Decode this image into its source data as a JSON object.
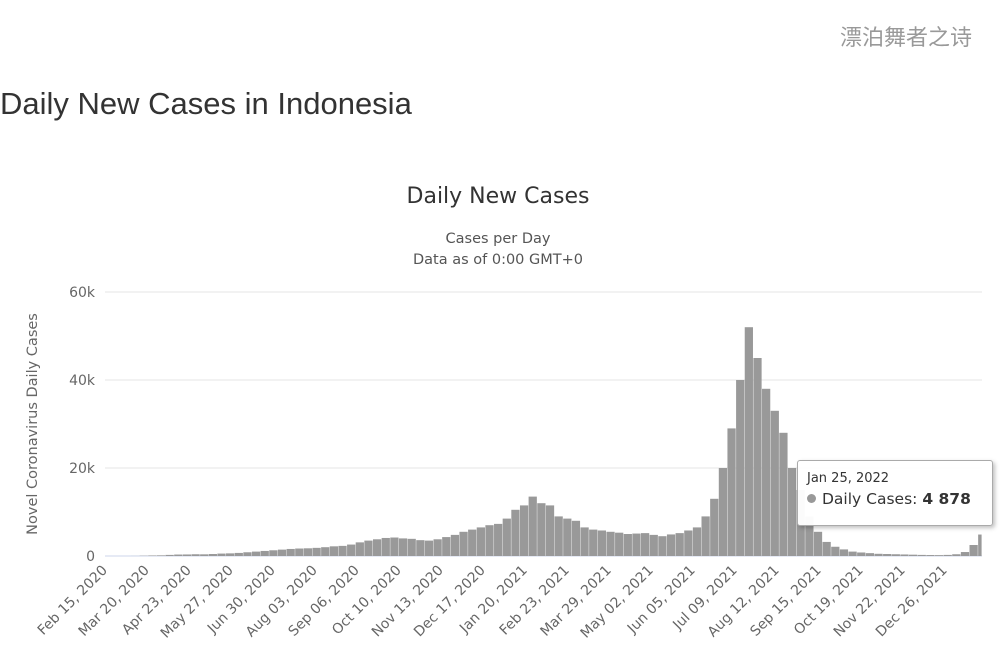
{
  "page": {
    "title": "Daily New Cases in Indonesia"
  },
  "watermark": "漂泊舞者之诗",
  "tooltip": {
    "date": "Jan 25, 2022",
    "series": "Daily Cases",
    "value": "4 878"
  },
  "colors": {
    "bar": "#999999",
    "grid": "#e6e6e6",
    "text": "#666666"
  },
  "chart_data": {
    "type": "bar",
    "title": "Daily New Cases",
    "subtitle": [
      "Cases per Day",
      "Data as of 0:00 GMT+0"
    ],
    "xlabel": "",
    "ylabel": "Novel Coronavirus Daily Cases",
    "ylim": [
      0,
      60000
    ],
    "yticks": [
      {
        "value": 0,
        "label": "0"
      },
      {
        "value": 20000,
        "label": "20k"
      },
      {
        "value": 40000,
        "label": "40k"
      },
      {
        "value": 60000,
        "label": "60k"
      }
    ],
    "x_start": "Feb 15, 2020",
    "x_end": "Jan 25, 2022",
    "x_step_days": 7,
    "xtick_interval_days": 34,
    "xticks": [
      "Feb 15, 2020",
      "Mar 20, 2020",
      "Apr 23, 2020",
      "May 27, 2020",
      "Jun 30, 2020",
      "Aug 03, 2020",
      "Sep 06, 2020",
      "Oct 10, 2020",
      "Nov 13, 2020",
      "Dec 17, 2020",
      "Jan 20, 2021",
      "Feb 23, 2021",
      "Mar 29, 2021",
      "May 02, 2021",
      "Jun 05, 2021",
      "Jul 09, 2021",
      "Aug 12, 2021",
      "Sep 15, 2021",
      "Oct 19, 2021",
      "Nov 22, 2021",
      "Dec 26, 2021"
    ],
    "grid": true,
    "legend": "none",
    "series": [
      {
        "name": "Daily Cases",
        "values": [
          0,
          0,
          0,
          10,
          60,
          120,
          150,
          250,
          330,
          350,
          400,
          380,
          450,
          550,
          600,
          700,
          850,
          1000,
          1150,
          1300,
          1450,
          1600,
          1700,
          1750,
          1850,
          2000,
          2200,
          2300,
          2600,
          3100,
          3500,
          3800,
          4100,
          4200,
          4000,
          3900,
          3600,
          3500,
          3800,
          4300,
          4800,
          5500,
          6000,
          6500,
          7000,
          7300,
          8500,
          10500,
          11500,
          13500,
          12000,
          11500,
          9000,
          8500,
          8000,
          6500,
          6000,
          5800,
          5500,
          5300,
          5000,
          5100,
          5200,
          4800,
          4500,
          4900,
          5200,
          5800,
          6500,
          9000,
          13000,
          20000,
          29000,
          40000,
          52000,
          45000,
          38000,
          33000,
          28000,
          20000,
          15000,
          9000,
          5500,
          3200,
          2100,
          1500,
          1000,
          800,
          650,
          500,
          450,
          400,
          350,
          300,
          250,
          220,
          200,
          250,
          400,
          900,
          2500,
          4878
        ]
      }
    ]
  }
}
